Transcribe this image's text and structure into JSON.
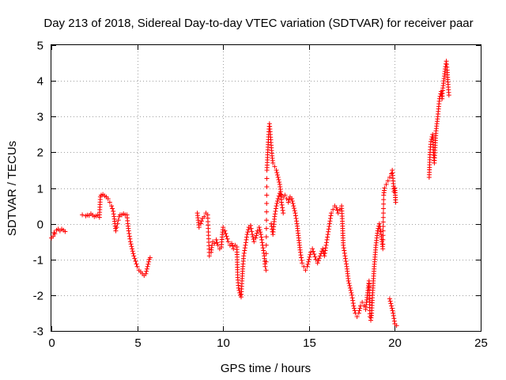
{
  "chart_data": {
    "type": "scatter",
    "title": "Day 213 of 2018, Sidereal Day-to-day VTEC variation (SDTVAR) for receiver paar",
    "xlabel": "GPS time / hours",
    "ylabel": "SDTVAR / TECUs",
    "xlim": [
      0,
      25
    ],
    "ylim": [
      -3,
      5
    ],
    "xticks": [
      "0",
      "5",
      "10",
      "15",
      "20",
      "25"
    ],
    "yticks": [
      "-3",
      "-2",
      "-1",
      "0",
      "1",
      "2",
      "3",
      "4",
      "5"
    ],
    "grid": true,
    "marker": "+",
    "color": "#ff0000",
    "series": [
      {
        "name": "SDTVAR",
        "points": [
          [
            0.0,
            -0.4
          ],
          [
            0.1,
            -0.35
          ],
          [
            0.15,
            -0.25
          ],
          [
            0.2,
            -0.28
          ],
          [
            0.3,
            -0.18
          ],
          [
            0.4,
            -0.15
          ],
          [
            0.5,
            -0.2
          ],
          [
            0.6,
            -0.15
          ],
          [
            0.7,
            -0.18
          ],
          [
            0.8,
            -0.22
          ],
          [
            1.8,
            0.25
          ],
          [
            2.0,
            0.22
          ],
          [
            2.1,
            0.24
          ],
          [
            2.2,
            0.23
          ],
          [
            2.3,
            0.28
          ],
          [
            2.4,
            0.24
          ],
          [
            2.5,
            0.2
          ],
          [
            2.6,
            0.22
          ],
          [
            2.7,
            0.24
          ],
          [
            2.8,
            0.18
          ],
          [
            2.85,
            0.75
          ],
          [
            2.9,
            0.8
          ],
          [
            3.0,
            0.82
          ],
          [
            3.1,
            0.78
          ],
          [
            3.2,
            0.75
          ],
          [
            3.3,
            0.7
          ],
          [
            3.4,
            0.6
          ],
          [
            3.5,
            0.5
          ],
          [
            3.6,
            0.35
          ],
          [
            3.65,
            0.2
          ],
          [
            3.7,
            0.0
          ],
          [
            3.75,
            -0.2
          ],
          [
            3.8,
            -0.1
          ],
          [
            3.85,
            0.0
          ],
          [
            3.9,
            0.1
          ],
          [
            3.95,
            0.2
          ],
          [
            4.0,
            0.25
          ],
          [
            4.1,
            0.25
          ],
          [
            4.2,
            0.28
          ],
          [
            4.3,
            0.25
          ],
          [
            4.4,
            0.25
          ],
          [
            4.45,
            0.0
          ],
          [
            4.5,
            -0.2
          ],
          [
            4.6,
            -0.5
          ],
          [
            4.7,
            -0.7
          ],
          [
            4.8,
            -0.9
          ],
          [
            4.9,
            -1.05
          ],
          [
            5.0,
            -1.2
          ],
          [
            5.1,
            -1.3
          ],
          [
            5.2,
            -1.35
          ],
          [
            5.3,
            -1.4
          ],
          [
            5.4,
            -1.45
          ],
          [
            5.5,
            -1.4
          ],
          [
            5.6,
            -1.2
          ],
          [
            5.7,
            -1.0
          ],
          [
            5.75,
            -0.95
          ],
          [
            8.5,
            0.3
          ],
          [
            8.55,
            0.1
          ],
          [
            8.6,
            -0.1
          ],
          [
            8.7,
            0.0
          ],
          [
            8.8,
            0.15
          ],
          [
            8.9,
            0.2
          ],
          [
            9.0,
            0.3
          ],
          [
            9.1,
            0.25
          ],
          [
            9.2,
            -0.9
          ],
          [
            9.3,
            -0.8
          ],
          [
            9.35,
            -0.6
          ],
          [
            9.4,
            -0.5
          ],
          [
            9.5,
            -0.55
          ],
          [
            9.6,
            -0.45
          ],
          [
            9.7,
            -0.6
          ],
          [
            9.8,
            -0.7
          ],
          [
            9.9,
            -0.65
          ],
          [
            9.95,
            -0.3
          ],
          [
            10.0,
            -0.1
          ],
          [
            10.1,
            -0.2
          ],
          [
            10.2,
            -0.35
          ],
          [
            10.3,
            -0.5
          ],
          [
            10.4,
            -0.6
          ],
          [
            10.5,
            -0.55
          ],
          [
            10.6,
            -0.7
          ],
          [
            10.7,
            -0.6
          ],
          [
            10.8,
            -0.65
          ],
          [
            10.85,
            -1.5
          ],
          [
            10.9,
            -1.8
          ],
          [
            11.0,
            -2.0
          ],
          [
            11.05,
            -2.05
          ],
          [
            11.1,
            -1.6
          ],
          [
            11.15,
            -1.2
          ],
          [
            11.2,
            -0.9
          ],
          [
            11.3,
            -0.6
          ],
          [
            11.4,
            -0.3
          ],
          [
            11.5,
            -0.1
          ],
          [
            11.6,
            -0.05
          ],
          [
            11.7,
            -0.3
          ],
          [
            11.8,
            -0.5
          ],
          [
            11.9,
            -0.4
          ],
          [
            12.0,
            -0.2
          ],
          [
            12.1,
            -0.1
          ],
          [
            12.2,
            -0.3
          ],
          [
            12.3,
            -0.6
          ],
          [
            12.4,
            -0.9
          ],
          [
            12.45,
            -1.2
          ],
          [
            12.5,
            -1.3
          ],
          [
            12.55,
            1.5
          ],
          [
            12.6,
            2.0
          ],
          [
            12.65,
            2.5
          ],
          [
            12.7,
            2.8
          ],
          [
            12.75,
            2.5
          ],
          [
            12.8,
            2.2
          ],
          [
            12.85,
            1.9
          ],
          [
            12.9,
            1.7
          ],
          [
            13.0,
            1.6
          ],
          [
            13.1,
            1.5
          ],
          [
            13.2,
            1.3
          ],
          [
            13.3,
            1.1
          ],
          [
            13.35,
            0.9
          ],
          [
            13.4,
            0.6
          ],
          [
            13.5,
            0.3
          ],
          [
            12.8,
            0.0
          ],
          [
            12.9,
            -0.3
          ],
          [
            13.0,
            0.2
          ],
          [
            13.1,
            0.5
          ],
          [
            13.2,
            0.7
          ],
          [
            13.3,
            0.85
          ],
          [
            13.4,
            0.8
          ],
          [
            13.5,
            0.75
          ],
          [
            13.6,
            0.8
          ],
          [
            13.7,
            0.7
          ],
          [
            13.8,
            0.6
          ],
          [
            13.9,
            0.75
          ],
          [
            14.0,
            0.7
          ],
          [
            14.1,
            0.5
          ],
          [
            14.2,
            0.3
          ],
          [
            14.3,
            0.0
          ],
          [
            14.4,
            -0.4
          ],
          [
            14.5,
            -0.8
          ],
          [
            14.6,
            -1.1
          ],
          [
            14.7,
            -1.2
          ],
          [
            14.8,
            -1.3
          ],
          [
            14.9,
            -1.2
          ],
          [
            15.0,
            -1.0
          ],
          [
            15.1,
            -0.8
          ],
          [
            15.2,
            -0.7
          ],
          [
            15.3,
            -0.85
          ],
          [
            15.4,
            -1.0
          ],
          [
            15.5,
            -1.1
          ],
          [
            15.8,
            -0.7
          ],
          [
            15.9,
            -0.9
          ],
          [
            16.0,
            -0.6
          ],
          [
            16.1,
            -0.3
          ],
          [
            16.2,
            0.0
          ],
          [
            16.3,
            0.3
          ],
          [
            16.4,
            0.4
          ],
          [
            16.5,
            0.5
          ],
          [
            16.6,
            0.45
          ],
          [
            16.7,
            0.3
          ],
          [
            16.8,
            0.4
          ],
          [
            16.9,
            0.5
          ],
          [
            16.95,
            0.0
          ],
          [
            17.0,
            -0.6
          ],
          [
            17.1,
            -0.9
          ],
          [
            17.2,
            -1.2
          ],
          [
            17.3,
            -1.6
          ],
          [
            17.4,
            -1.8
          ],
          [
            17.5,
            -2.0
          ],
          [
            17.6,
            -2.3
          ],
          [
            17.7,
            -2.5
          ],
          [
            17.8,
            -2.6
          ],
          [
            17.9,
            -2.5
          ],
          [
            18.0,
            -2.3
          ],
          [
            18.1,
            -2.2
          ],
          [
            18.2,
            -2.3
          ],
          [
            18.3,
            -2.4
          ],
          [
            18.4,
            -2.0
          ],
          [
            18.5,
            -1.6
          ],
          [
            18.55,
            -2.6
          ],
          [
            18.6,
            -2.7
          ],
          [
            18.65,
            -2.5
          ],
          [
            18.7,
            -2.0
          ],
          [
            18.8,
            -1.2
          ],
          [
            18.9,
            -0.6
          ],
          [
            19.0,
            -0.2
          ],
          [
            19.1,
            0.0
          ],
          [
            19.2,
            -0.3
          ],
          [
            19.3,
            -0.7
          ],
          [
            19.35,
            0.8
          ],
          [
            19.4,
            1.0
          ],
          [
            19.5,
            1.1
          ],
          [
            19.6,
            1.2
          ],
          [
            19.7,
            1.3
          ],
          [
            19.8,
            1.4
          ],
          [
            19.85,
            1.5
          ],
          [
            19.9,
            1.2
          ],
          [
            19.95,
            0.9
          ],
          [
            20.0,
            1.0
          ],
          [
            20.05,
            0.6
          ],
          [
            19.7,
            -2.1
          ],
          [
            19.8,
            -2.3
          ],
          [
            19.9,
            -2.5
          ],
          [
            20.0,
            -2.8
          ],
          [
            20.1,
            -2.85
          ],
          [
            22.0,
            1.3
          ],
          [
            22.05,
            2.0
          ],
          [
            22.1,
            2.3
          ],
          [
            22.2,
            2.5
          ],
          [
            22.25,
            2.0
          ],
          [
            22.3,
            1.7
          ],
          [
            22.35,
            2.2
          ],
          [
            22.4,
            2.6
          ],
          [
            22.5,
            3.0
          ],
          [
            22.6,
            3.5
          ],
          [
            22.7,
            3.7
          ],
          [
            22.75,
            3.5
          ],
          [
            22.8,
            3.8
          ],
          [
            22.85,
            4.0
          ],
          [
            22.9,
            4.2
          ],
          [
            22.95,
            4.4
          ],
          [
            23.0,
            4.55
          ],
          [
            23.05,
            4.3
          ],
          [
            23.1,
            3.9
          ],
          [
            23.15,
            3.6
          ]
        ]
      }
    ]
  }
}
